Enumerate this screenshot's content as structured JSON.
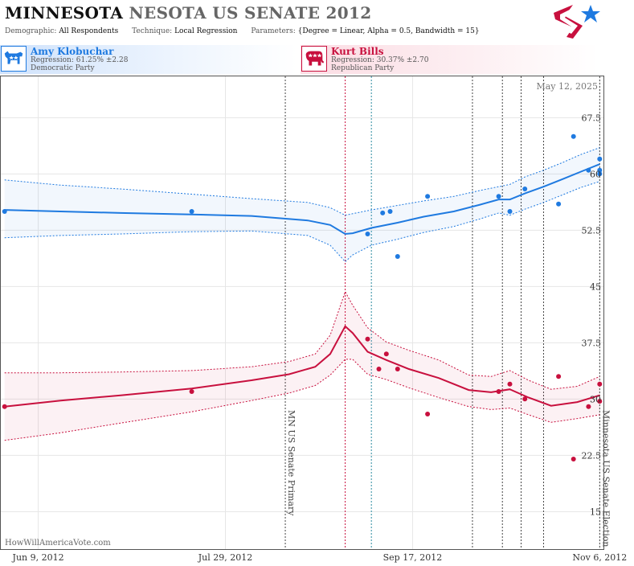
{
  "header": {
    "title_state": "MINNESOTA",
    "title_rest": "NESOTA US SENATE 2012",
    "params": [
      {
        "label": "Demographic:",
        "value": "All Respondents"
      },
      {
        "label": "Technique:",
        "value": "Local Regression"
      },
      {
        "label": "Parameters:",
        "value": "{Degree = Linear, Alpha = 0.5, Bandwidth = 15}"
      }
    ]
  },
  "candidates": {
    "dem": {
      "name": "Amy Klobuchar",
      "regression": "Regression: 61.25% ±2.28",
      "party": "Democratic Party",
      "color": "#1f7ae0"
    },
    "rep": {
      "name": "Kurt Bills",
      "regression": "Regression: 30.37% ±2.70",
      "party": "Republican Party",
      "color": "#c8103e"
    }
  },
  "chart_data": {
    "type": "scatter",
    "date_label": "May 12, 2025",
    "watermark": "HowWillAmericaVote.com",
    "x_ticks": [
      "Jun 9, 2012",
      "Jul 29, 2012",
      "Sep 17, 2012",
      "Nov 6, 2012"
    ],
    "x_range": [
      "2012-05-30",
      "2012-11-07"
    ],
    "y_range": [
      10,
      73
    ],
    "y_ticks": [
      15,
      22.5,
      30,
      37.5,
      45,
      52.5,
      60,
      67.5
    ],
    "events": [
      {
        "date": "2012-08-14",
        "label": "MN US Senate Primary",
        "color": "#444"
      },
      {
        "date": "2012-08-30",
        "label": "",
        "color": "#c8103e"
      },
      {
        "date": "2012-09-06",
        "label": "",
        "color": "#2a8aa0"
      },
      {
        "date": "2012-10-03",
        "label": "",
        "color": "#444"
      },
      {
        "date": "2012-10-11",
        "label": "",
        "color": "#444"
      },
      {
        "date": "2012-10-16",
        "label": "",
        "color": "#444"
      },
      {
        "date": "2012-10-22",
        "label": "",
        "color": "#444"
      },
      {
        "date": "2012-11-06",
        "label": "Minnesota US Senate Election",
        "color": "#444"
      }
    ],
    "series": [
      {
        "name": "Amy Klobuchar",
        "color": "#1f7ae0",
        "points": [
          [
            "2012-05-31",
            55
          ],
          [
            "2012-07-20",
            55
          ],
          [
            "2012-09-05",
            52
          ],
          [
            "2012-09-09",
            54.8
          ],
          [
            "2012-09-11",
            55
          ],
          [
            "2012-09-13",
            49
          ],
          [
            "2012-09-21",
            57
          ],
          [
            "2012-10-10",
            57
          ],
          [
            "2012-10-13",
            55
          ],
          [
            "2012-10-17",
            58
          ],
          [
            "2012-10-26",
            56
          ],
          [
            "2012-10-30",
            65
          ],
          [
            "2012-11-03",
            60.5
          ],
          [
            "2012-11-06",
            62
          ],
          [
            "2012-11-06",
            60.5
          ],
          [
            "2012-11-06",
            60
          ]
        ],
        "trend": [
          [
            "2012-05-31",
            55.2
          ],
          [
            "2012-06-15",
            55
          ],
          [
            "2012-07-01",
            54.8
          ],
          [
            "2012-07-20",
            54.6
          ],
          [
            "2012-08-05",
            54.4
          ],
          [
            "2012-08-20",
            53.8
          ],
          [
            "2012-08-26",
            53.2
          ],
          [
            "2012-08-30",
            52
          ],
          [
            "2012-09-01",
            52.1
          ],
          [
            "2012-09-06",
            52.8
          ],
          [
            "2012-09-13",
            53.5
          ],
          [
            "2012-09-20",
            54.3
          ],
          [
            "2012-09-28",
            55
          ],
          [
            "2012-10-05",
            55.9
          ],
          [
            "2012-10-10",
            56.6
          ],
          [
            "2012-10-13",
            56.6
          ],
          [
            "2012-10-17",
            57.4
          ],
          [
            "2012-10-22",
            58.3
          ],
          [
            "2012-10-27",
            59.3
          ],
          [
            "2012-11-01",
            60.3
          ],
          [
            "2012-11-06",
            61.3
          ]
        ],
        "upper": [
          [
            "2012-05-31",
            59.2
          ],
          [
            "2012-06-15",
            58.5
          ],
          [
            "2012-07-01",
            58.0
          ],
          [
            "2012-07-20",
            57.3
          ],
          [
            "2012-08-05",
            56.7
          ],
          [
            "2012-08-20",
            56.2
          ],
          [
            "2012-08-26",
            55.5
          ],
          [
            "2012-08-30",
            54.5
          ],
          [
            "2012-09-01",
            54.7
          ],
          [
            "2012-09-06",
            55.2
          ],
          [
            "2012-09-13",
            55.8
          ],
          [
            "2012-09-20",
            56.4
          ],
          [
            "2012-09-28",
            57
          ],
          [
            "2012-10-05",
            57.8
          ],
          [
            "2012-10-10",
            58.3
          ],
          [
            "2012-10-13",
            58.6
          ],
          [
            "2012-10-17",
            59.6
          ],
          [
            "2012-10-22",
            60.5
          ],
          [
            "2012-10-27",
            61.5
          ],
          [
            "2012-11-01",
            62.6
          ],
          [
            "2012-11-06",
            63.5
          ]
        ],
        "lower": [
          [
            "2012-05-31",
            51.5
          ],
          [
            "2012-06-15",
            51.8
          ],
          [
            "2012-07-01",
            52.0
          ],
          [
            "2012-07-20",
            52.3
          ],
          [
            "2012-08-05",
            52.4
          ],
          [
            "2012-08-20",
            51.8
          ],
          [
            "2012-08-26",
            50.5
          ],
          [
            "2012-08-30",
            48.3
          ],
          [
            "2012-09-01",
            49.2
          ],
          [
            "2012-09-06",
            50.5
          ],
          [
            "2012-09-13",
            51.3
          ],
          [
            "2012-09-20",
            52.2
          ],
          [
            "2012-09-28",
            53
          ],
          [
            "2012-10-05",
            54
          ],
          [
            "2012-10-10",
            54.8
          ],
          [
            "2012-10-13",
            54.5
          ],
          [
            "2012-10-17",
            55.3
          ],
          [
            "2012-10-22",
            56.2
          ],
          [
            "2012-10-27",
            57.2
          ],
          [
            "2012-11-01",
            58.2
          ],
          [
            "2012-11-06",
            59
          ]
        ]
      },
      {
        "name": "Kurt Bills",
        "color": "#c8103e",
        "points": [
          [
            "2012-05-31",
            29
          ],
          [
            "2012-07-20",
            31
          ],
          [
            "2012-09-05",
            38
          ],
          [
            "2012-09-08",
            34
          ],
          [
            "2012-09-10",
            36
          ],
          [
            "2012-09-13",
            34
          ],
          [
            "2012-09-21",
            28
          ],
          [
            "2012-10-10",
            31
          ],
          [
            "2012-10-13",
            32
          ],
          [
            "2012-10-17",
            30
          ],
          [
            "2012-10-26",
            33
          ],
          [
            "2012-10-30",
            22
          ],
          [
            "2012-11-03",
            29
          ],
          [
            "2012-11-06",
            32
          ],
          [
            "2012-11-06",
            29.7
          ]
        ],
        "trend": [
          [
            "2012-05-31",
            29
          ],
          [
            "2012-06-15",
            29.8
          ],
          [
            "2012-07-01",
            30.5
          ],
          [
            "2012-07-20",
            31.4
          ],
          [
            "2012-08-05",
            32.5
          ],
          [
            "2012-08-15",
            33.3
          ],
          [
            "2012-08-22",
            34.3
          ],
          [
            "2012-08-26",
            36
          ],
          [
            "2012-08-30",
            39.7
          ],
          [
            "2012-09-01",
            38.8
          ],
          [
            "2012-09-05",
            36.3
          ],
          [
            "2012-09-10",
            35.2
          ],
          [
            "2012-09-16",
            34
          ],
          [
            "2012-09-24",
            32.8
          ],
          [
            "2012-10-02",
            31.2
          ],
          [
            "2012-10-08",
            30.9
          ],
          [
            "2012-10-13",
            31.3
          ],
          [
            "2012-10-18",
            30.2
          ],
          [
            "2012-10-24",
            29.1
          ],
          [
            "2012-10-31",
            29.6
          ],
          [
            "2012-11-06",
            30.5
          ]
        ],
        "upper": [
          [
            "2012-05-31",
            33.5
          ],
          [
            "2012-06-15",
            33.5
          ],
          [
            "2012-07-01",
            33.6
          ],
          [
            "2012-07-20",
            33.8
          ],
          [
            "2012-08-05",
            34.3
          ],
          [
            "2012-08-15",
            35
          ],
          [
            "2012-08-22",
            36
          ],
          [
            "2012-08-26",
            38.5
          ],
          [
            "2012-08-30",
            44.3
          ],
          [
            "2012-09-01",
            42.5
          ],
          [
            "2012-09-05",
            39.5
          ],
          [
            "2012-09-10",
            37.6
          ],
          [
            "2012-09-16",
            36.5
          ],
          [
            "2012-09-24",
            35.2
          ],
          [
            "2012-10-02",
            33.2
          ],
          [
            "2012-10-08",
            33.0
          ],
          [
            "2012-10-13",
            33.8
          ],
          [
            "2012-10-18",
            32.5
          ],
          [
            "2012-10-24",
            31.3
          ],
          [
            "2012-10-31",
            31.7
          ],
          [
            "2012-11-06",
            33
          ]
        ],
        "lower": [
          [
            "2012-05-31",
            24.5
          ],
          [
            "2012-06-15",
            25.5
          ],
          [
            "2012-07-01",
            26.8
          ],
          [
            "2012-07-20",
            28.3
          ],
          [
            "2012-08-05",
            29.8
          ],
          [
            "2012-08-15",
            30.8
          ],
          [
            "2012-08-22",
            31.8
          ],
          [
            "2012-08-26",
            33.2
          ],
          [
            "2012-08-30",
            35.3
          ],
          [
            "2012-09-01",
            35.3
          ],
          [
            "2012-09-05",
            33.3
          ],
          [
            "2012-09-10",
            32.6
          ],
          [
            "2012-09-16",
            31.5
          ],
          [
            "2012-09-24",
            30.2
          ],
          [
            "2012-10-02",
            29
          ],
          [
            "2012-10-08",
            28.6
          ],
          [
            "2012-10-13",
            28.8
          ],
          [
            "2012-10-18",
            27.9
          ],
          [
            "2012-10-24",
            26.9
          ],
          [
            "2012-10-31",
            27.4
          ],
          [
            "2012-11-06",
            27.9
          ]
        ]
      }
    ]
  }
}
